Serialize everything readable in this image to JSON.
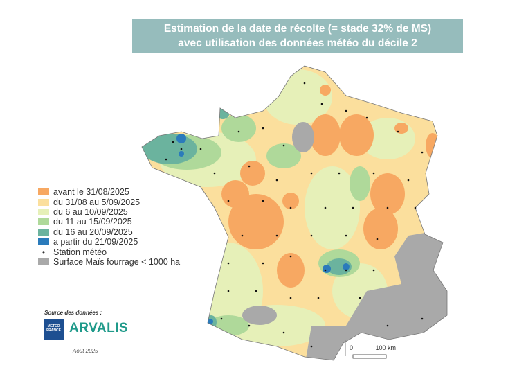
{
  "title": {
    "line1": "Estimation de la date de récolte (= stade 32% de MS)",
    "line2": "avec utilisation des données météo du décile 2"
  },
  "legend": [
    {
      "label": "avant le 31/08/2025",
      "color": "#f7a862"
    },
    {
      "label": "du 31/08 au 5/09/2025",
      "color": "#fbdf9d"
    },
    {
      "label": "du 6 au 10/09/2025",
      "color": "#e6f0b8"
    },
    {
      "label": "du 11 au 15/09/2025",
      "color": "#afd99a"
    },
    {
      "label": "du 16 au 20/09/2025",
      "color": "#6bb39e"
    },
    {
      "label": "a partir du 21/09/2025",
      "color": "#2b7bbb"
    },
    {
      "label": "Station météo",
      "symbol": "•"
    },
    {
      "label": "Surface Maïs fourrage < 1000 ha",
      "color": "#a9a9a9"
    }
  ],
  "source": {
    "label": "Source des données :",
    "logo_meteofrance": "METEO FRANCE",
    "logo_arvalis": "ARVALIS",
    "date": "Août 2025"
  },
  "scale": {
    "start": "0",
    "end": "100 km"
  }
}
